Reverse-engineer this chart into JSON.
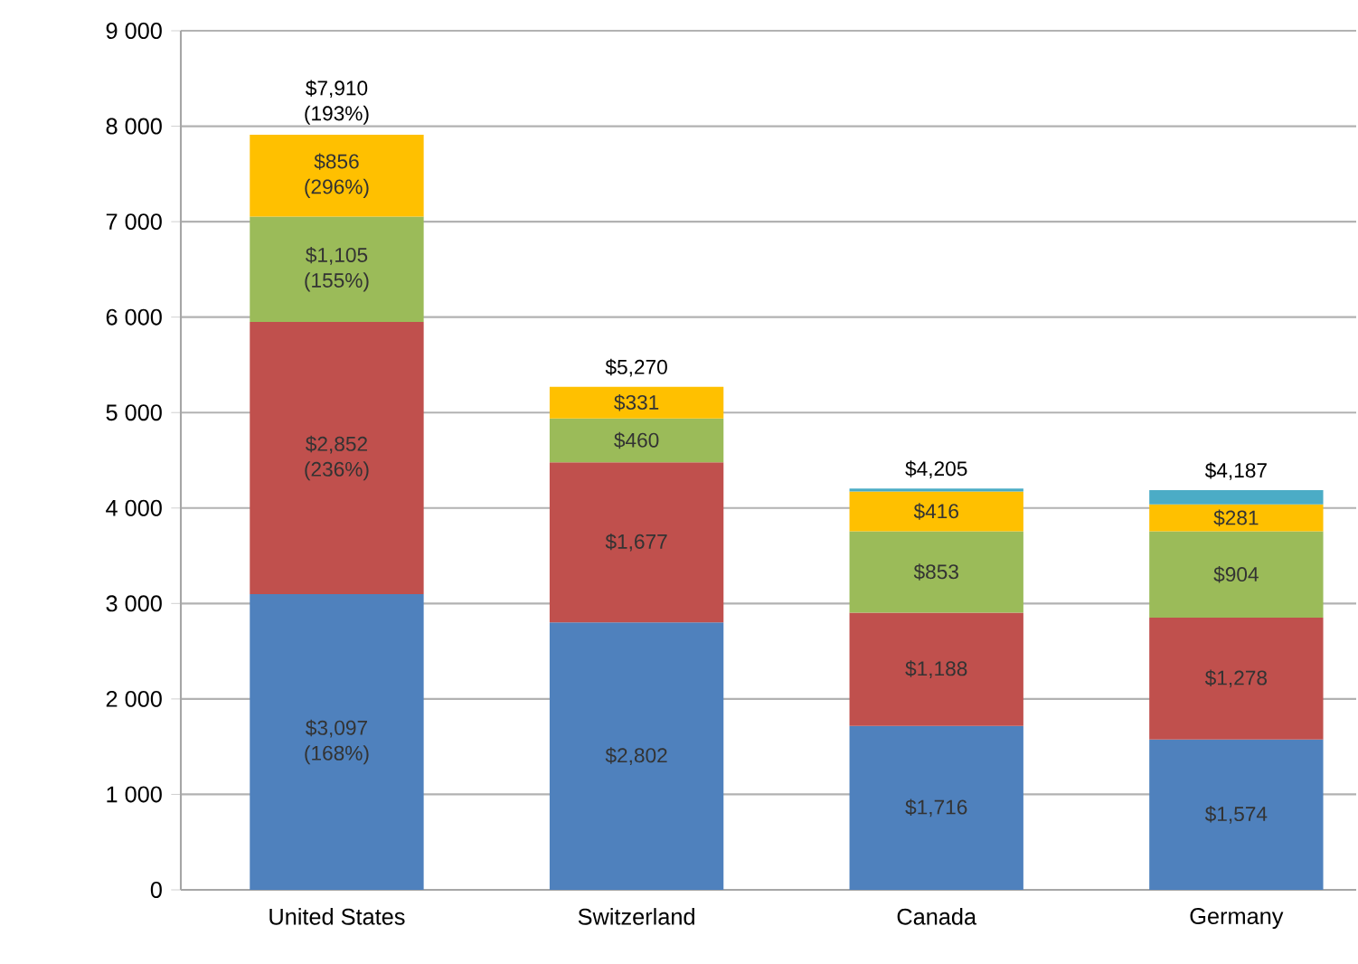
{
  "chart_data": {
    "type": "bar",
    "stacked": true,
    "categories": [
      "United States",
      "Switzerland",
      "Canada",
      "Germany"
    ],
    "series": [
      {
        "color": "#4f81bd",
        "values": [
          3097,
          2802,
          1716,
          1574
        ],
        "value_labels": [
          "$3,097 (168%)",
          "$2,802",
          "$1,716",
          "$1,574"
        ]
      },
      {
        "color": "#c0504d",
        "values": [
          2852,
          1677,
          1188,
          1278
        ],
        "value_labels": [
          "$2,852 (236%)",
          "$1,677",
          "$1,188",
          "$1,278"
        ]
      },
      {
        "color": "#9bbb59",
        "values": [
          1105,
          460,
          853,
          904
        ],
        "value_labels": [
          "$1,105 (155%)",
          "$460",
          "$853",
          "$904"
        ]
      },
      {
        "color": "#ffc000",
        "values": [
          856,
          331,
          416,
          281
        ],
        "value_labels": [
          "$856 (296%)",
          "$331",
          "$416",
          "$281"
        ]
      },
      {
        "color": "#4bacc6",
        "values": [
          null,
          null,
          32,
          150
        ],
        "value_labels": [
          null,
          null,
          null,
          null
        ]
      }
    ],
    "totals": [
      "$7,910 (193%)",
      "$5,270",
      "$4,205",
      "$4,187"
    ],
    "ylim": [
      0,
      9000
    ],
    "yticks": [
      {
        "value": 0,
        "label": "0"
      },
      {
        "value": 1000,
        "label": "1 000"
      },
      {
        "value": 2000,
        "label": "2 000"
      },
      {
        "value": 3000,
        "label": "3 000"
      },
      {
        "value": 4000,
        "label": "4 000"
      },
      {
        "value": 5000,
        "label": "5 000"
      },
      {
        "value": 6000,
        "label": "6 000"
      },
      {
        "value": 7000,
        "label": "7 000"
      },
      {
        "value": 8000,
        "label": "8 000"
      },
      {
        "value": 9000,
        "label": "9 000"
      }
    ],
    "grid": "y"
  }
}
